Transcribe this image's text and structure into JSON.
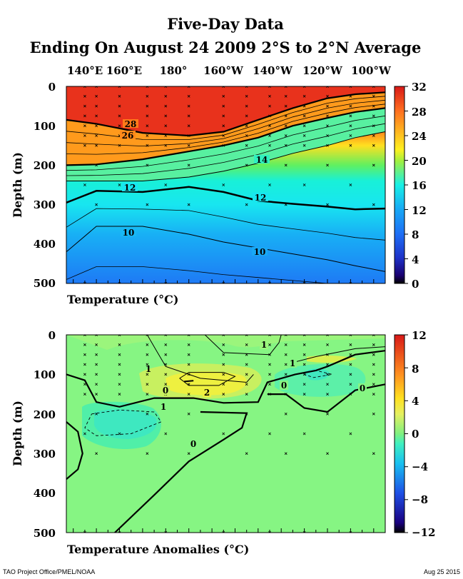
{
  "title": "Five-Day Data",
  "subtitle": "Ending On August 24 2009  2°S to 2°N Average",
  "footer_left": "TAO Project Office/PMEL/NOAA",
  "footer_right": "Aug 25 2015",
  "chart_data": [
    {
      "type": "heatmap",
      "panel": "temperature",
      "xlabel": "Temperature  (°C)",
      "ylabel": "Depth (m)",
      "x_ticks": [
        "140°E",
        "160°E",
        "180°",
        "160°W",
        "140°W",
        "120°W",
        "100°W"
      ],
      "x_tick_values": [
        140,
        160,
        180,
        200,
        220,
        240,
        260
      ],
      "xlim": [
        137,
        275
      ],
      "y_ticks": [
        "0",
        "100",
        "200",
        "300",
        "400",
        "500"
      ],
      "ylim": [
        500,
        0
      ],
      "colorbar": {
        "ticks": [
          "32",
          "28",
          "24",
          "20",
          "16",
          "12",
          "8",
          "4",
          "0"
        ],
        "range": [
          0,
          32
        ]
      },
      "contour_labels": [
        "28",
        "26",
        "14",
        "12",
        "12",
        "10",
        "10"
      ],
      "isotherm_depth_m": {
        "lon": [
          137,
          150,
          170,
          190,
          205,
          220,
          235,
          250,
          262,
          275
        ],
        "t28": [
          85,
          95,
          118,
          125,
          115,
          85,
          55,
          30,
          20,
          15
        ],
        "t20": [
          200,
          198,
          185,
          165,
          150,
          130,
          100,
          80,
          65,
          55
        ],
        "t14": [
          240,
          240,
          240,
          230,
          215,
          195,
          170,
          150,
          130,
          115
        ],
        "t12": [
          295,
          265,
          268,
          255,
          268,
          290,
          298,
          305,
          312,
          310
        ],
        "t10": [
          420,
          355,
          355,
          375,
          395,
          410,
          425,
          440,
          455,
          470
        ]
      }
    },
    {
      "type": "heatmap",
      "panel": "anomaly",
      "xlabel": "Temperature Anomalies (°C)",
      "ylabel": "Depth (m)",
      "ylim": [
        500,
        0
      ],
      "y_ticks": [
        "0",
        "100",
        "200",
        "300",
        "400",
        "500"
      ],
      "colorbar": {
        "ticks": [
          "12",
          "8",
          "4",
          "0",
          "−4",
          "−8",
          "−12"
        ],
        "range": [
          -12,
          12
        ]
      },
      "contour_labels": [
        "1",
        "1",
        "1",
        "0",
        "2",
        "0",
        "0",
        "0",
        "1"
      ]
    }
  ]
}
